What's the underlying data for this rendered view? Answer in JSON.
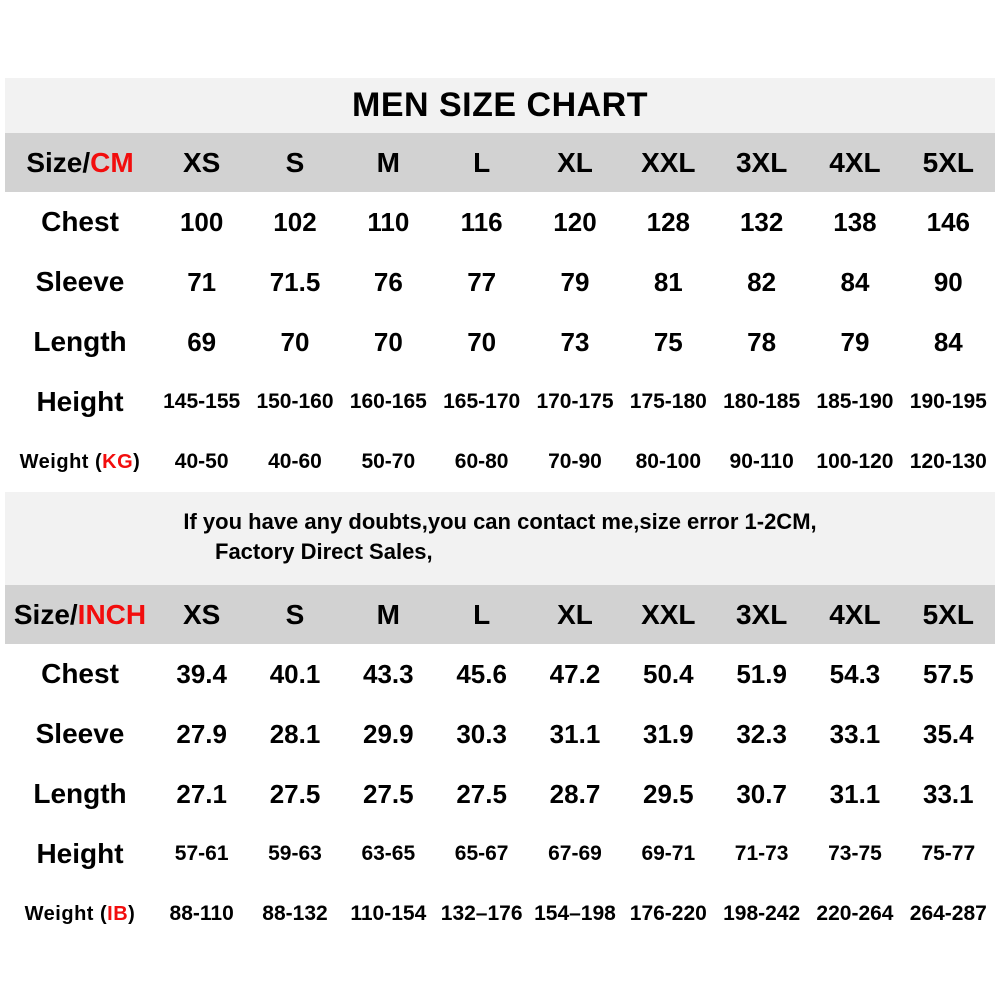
{
  "title": "MEN SIZE CHART",
  "colors": {
    "accent_red": "#f20d0d",
    "title_band_bg": "#f2f2f2",
    "note_band_bg": "#f2f2f2",
    "header_row_bg": "#d2d2d2",
    "text": "#000000",
    "page_bg": "#ffffff"
  },
  "note": {
    "line1": "If you have any doubts,you can contact me,size error 1-2CM,",
    "line2": "Factory Direct Sales,"
  },
  "chart_data": [
    {
      "type": "table",
      "title": "MEN SIZE CHART",
      "unit": "CM",
      "header": {
        "label_prefix": "Size/",
        "label_unit": "CM"
      },
      "sizes": [
        "XS",
        "S",
        "M",
        "L",
        "XL",
        "XXL",
        "3XL",
        "4XL",
        "5XL"
      ],
      "rows": [
        {
          "label_prefix": "Chest",
          "values": [
            "100",
            "102",
            "110",
            "116",
            "120",
            "128",
            "132",
            "138",
            "146"
          ]
        },
        {
          "label_prefix": "Sleeve",
          "values": [
            "71",
            "71.5",
            "76",
            "77",
            "79",
            "81",
            "82",
            "84",
            "90"
          ]
        },
        {
          "label_prefix": "Length",
          "values": [
            "69",
            "70",
            "70",
            "70",
            "73",
            "75",
            "78",
            "79",
            "84"
          ]
        },
        {
          "label_prefix": "Height",
          "values": [
            "145-155",
            "150-160",
            "160-165",
            "165-170",
            "170-175",
            "175-180",
            "180-185",
            "185-190",
            "190-195"
          ]
        },
        {
          "label_prefix": "Weight (",
          "label_unit": "KG",
          "label_suffix": ")",
          "values": [
            "40-50",
            "40-60",
            "50-70",
            "60-80",
            "70-90",
            "80-100",
            "90-110",
            "100-120",
            "120-130"
          ]
        }
      ]
    },
    {
      "type": "table",
      "title": "MEN SIZE CHART",
      "unit": "INCH",
      "header": {
        "label_prefix": "Size/",
        "label_unit": "INCH"
      },
      "sizes": [
        "XS",
        "S",
        "M",
        "L",
        "XL",
        "XXL",
        "3XL",
        "4XL",
        "5XL"
      ],
      "rows": [
        {
          "label_prefix": "Chest",
          "values": [
            "39.4",
            "40.1",
            "43.3",
            "45.6",
            "47.2",
            "50.4",
            "51.9",
            "54.3",
            "57.5"
          ]
        },
        {
          "label_prefix": "Sleeve",
          "values": [
            "27.9",
            "28.1",
            "29.9",
            "30.3",
            "31.1",
            "31.9",
            "32.3",
            "33.1",
            "35.4"
          ]
        },
        {
          "label_prefix": "Length",
          "values": [
            "27.1",
            "27.5",
            "27.5",
            "27.5",
            "28.7",
            "29.5",
            "30.7",
            "31.1",
            "33.1"
          ]
        },
        {
          "label_prefix": "Height",
          "values": [
            "57-61",
            "59-63",
            "63-65",
            "65-67",
            "67-69",
            "69-71",
            "71-73",
            "73-75",
            "75-77"
          ]
        },
        {
          "label_prefix": "Weight (",
          "label_unit": "IB",
          "label_suffix": ")",
          "values": [
            "88-110",
            "88-132",
            "110-154",
            "132–176",
            "154–198",
            "176-220",
            "198-242",
            "220-264",
            "264-287"
          ]
        }
      ]
    }
  ]
}
